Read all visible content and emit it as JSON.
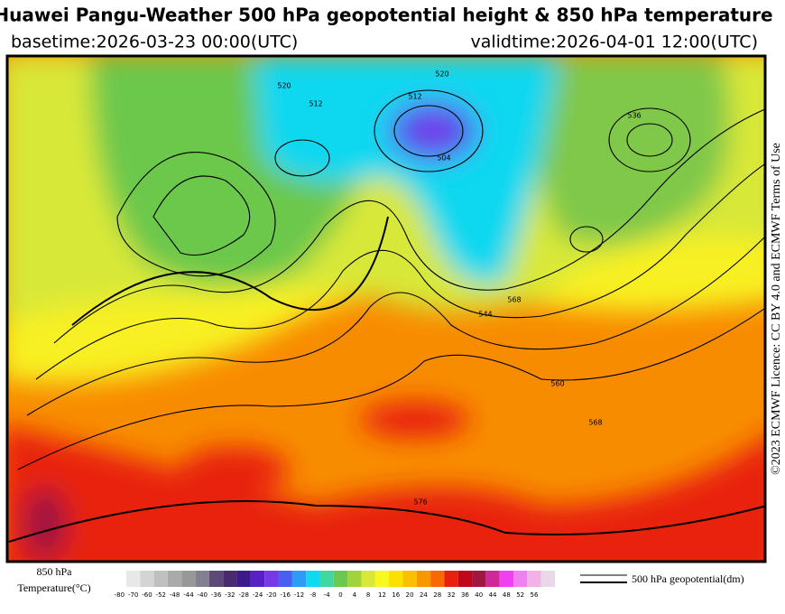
{
  "header": {
    "title": "Huawei Pangu-Weather 500 hPa geopotential height & 850 hPa temperature",
    "basetime": "basetime:2026-03-23 00:00(UTC)",
    "validtime": "validtime:2026-04-01 12:00(UTC)"
  },
  "licence": "©2023 ECMWF Licence: CC BY 4.0 and ECMWF Terms of Use",
  "map": {
    "contour_labels": [
      "520",
      "512",
      "504",
      "512",
      "520",
      "536",
      "544",
      "568",
      "560",
      "568",
      "576"
    ]
  },
  "legend": {
    "temperature_label": [
      "850 hPa",
      "Temperature(°C)"
    ],
    "geopotential_label": "500 hPa geopotential(dm)",
    "colorbar": {
      "ticks": [
        -80,
        -70,
        -60,
        -52,
        -48,
        -44,
        -40,
        -36,
        -32,
        -28,
        -24,
        -20,
        -16,
        -12,
        -8,
        -4,
        0,
        4,
        8,
        12,
        16,
        20,
        24,
        28,
        32,
        36,
        40,
        44,
        48,
        52,
        56
      ],
      "colors": [
        "#e8e8e8",
        "#d4d4d4",
        "#c0c0c0",
        "#aaaaaa",
        "#989898",
        "#848090",
        "#5e4a78",
        "#4a2a6e",
        "#3c1a8c",
        "#5a20c8",
        "#7838e8",
        "#4860f0",
        "#2c9cf4",
        "#10d8f0",
        "#40d8a0",
        "#6cc84c",
        "#a0d43c",
        "#d8e838",
        "#f8f820",
        "#fce000",
        "#fcc000",
        "#f89800",
        "#f86a00",
        "#e82010",
        "#c00818",
        "#a01840",
        "#d02898",
        "#f040f0",
        "#f080f0",
        "#f4b0e8",
        "#e8d8e8"
      ]
    }
  }
}
